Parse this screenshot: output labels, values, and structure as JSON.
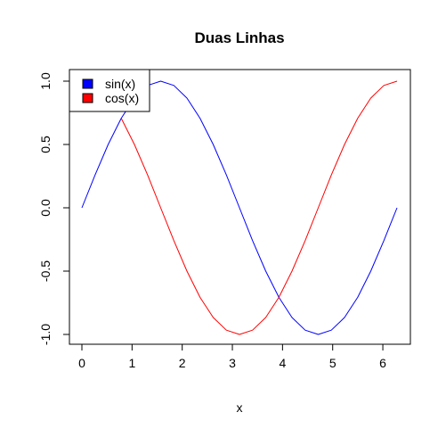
{
  "chart_data": {
    "type": "line",
    "title": "Duas Linhas",
    "xlabel": "x",
    "ylabel": "",
    "xlim": [
      0,
      6.283
    ],
    "ylim": [
      -1,
      1
    ],
    "x_ticks": [
      "0",
      "1",
      "2",
      "3",
      "4",
      "5",
      "6"
    ],
    "y_ticks": [
      "-1.0",
      "-0.5",
      "0.0",
      "0.5",
      "1.0"
    ],
    "grid": false,
    "legend_position": "top-left",
    "series": [
      {
        "name": "sin(x)",
        "color": "#0000ff",
        "x": [
          0,
          0.262,
          0.524,
          0.785,
          1.047,
          1.309,
          1.571,
          1.833,
          2.094,
          2.356,
          2.618,
          2.88,
          3.142,
          3.403,
          3.665,
          3.927,
          4.189,
          4.451,
          4.712,
          4.974,
          5.236,
          5.498,
          5.76,
          6.021,
          6.283
        ],
        "values": [
          0,
          0.259,
          0.5,
          0.707,
          0.866,
          0.966,
          1,
          0.966,
          0.866,
          0.707,
          0.5,
          0.259,
          0,
          -0.259,
          -0.5,
          -0.707,
          -0.866,
          -0.966,
          -1,
          -0.966,
          -0.866,
          -0.707,
          -0.5,
          -0.259,
          0
        ]
      },
      {
        "name": "cos(x)",
        "color": "#ff0000",
        "x": [
          0.785,
          1.047,
          1.309,
          1.571,
          1.833,
          2.094,
          2.356,
          2.618,
          2.88,
          3.142,
          3.403,
          3.665,
          3.927,
          4.189,
          4.451,
          4.712,
          4.974,
          5.236,
          5.498,
          5.76,
          6.021,
          6.283
        ],
        "values": [
          0.707,
          0.5,
          0.259,
          0,
          -0.259,
          -0.5,
          -0.707,
          -0.866,
          -0.966,
          -1,
          -0.966,
          -0.866,
          -0.707,
          -0.5,
          -0.259,
          0,
          0.259,
          0.5,
          0.707,
          0.866,
          0.966,
          1
        ]
      }
    ]
  }
}
